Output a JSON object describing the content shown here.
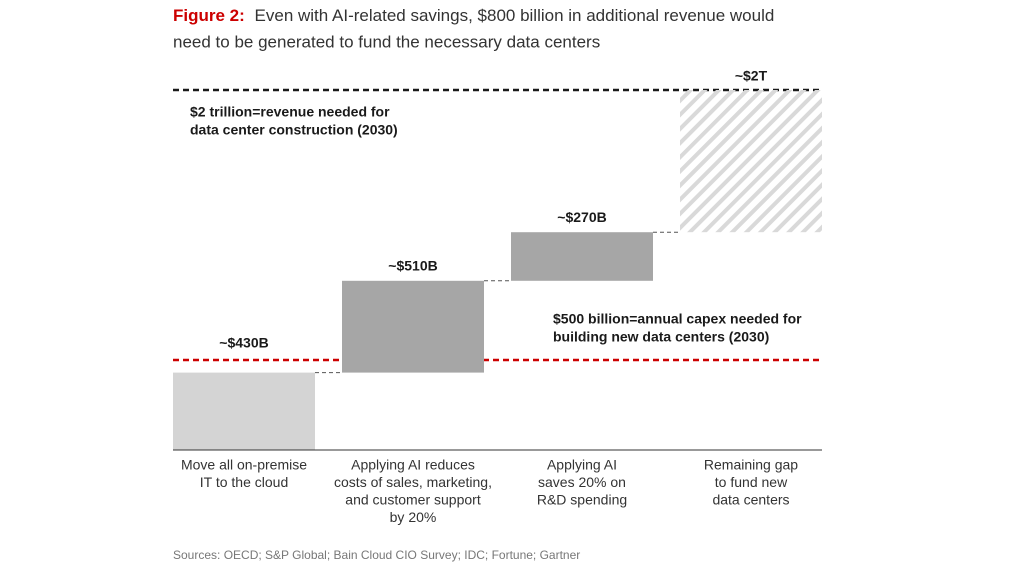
{
  "chart_data": {
    "type": "waterfall",
    "title_prefix": "Figure 2:",
    "title": [
      "Even with AI-related savings, $800 billion in additional revenue would",
      "need to be generated to fund the necessary data centers"
    ],
    "categories": [
      [
        "Move all on-premise",
        "IT to the cloud"
      ],
      [
        "Applying AI reduces",
        "costs of sales, marketing,",
        "and customer support",
        "by 20%"
      ],
      [
        "Applying AI",
        "saves 20% on",
        "R&D spending"
      ],
      [
        "Remaining gap",
        "to fund new",
        "data centers"
      ]
    ],
    "values": [
      430,
      510,
      270,
      790
    ],
    "value_labels": [
      "~$430B",
      "~$510B",
      "~$270B",
      null
    ],
    "colors": [
      "#d4d4d4",
      "#a6a6a6",
      "#a6a6a6",
      "#d9d9d9"
    ],
    "hatched": [
      false,
      false,
      false,
      true
    ],
    "ylim": [
      0,
      2000
    ],
    "reference_lines": [
      {
        "value": 2000,
        "label": "~$2T",
        "color": "#1a1a1a",
        "text": [
          "$2 trillion=revenue needed for",
          "data center construction (2030)"
        ]
      },
      {
        "value": 500,
        "color": "#cc0000",
        "text": [
          "$500 billion=annual capex needed for",
          "building new data centers (2030)"
        ]
      }
    ],
    "source": "Sources: OECD; S&P Global; Bain Cloud CIO Survey; IDC; Fortune; Gartner"
  }
}
